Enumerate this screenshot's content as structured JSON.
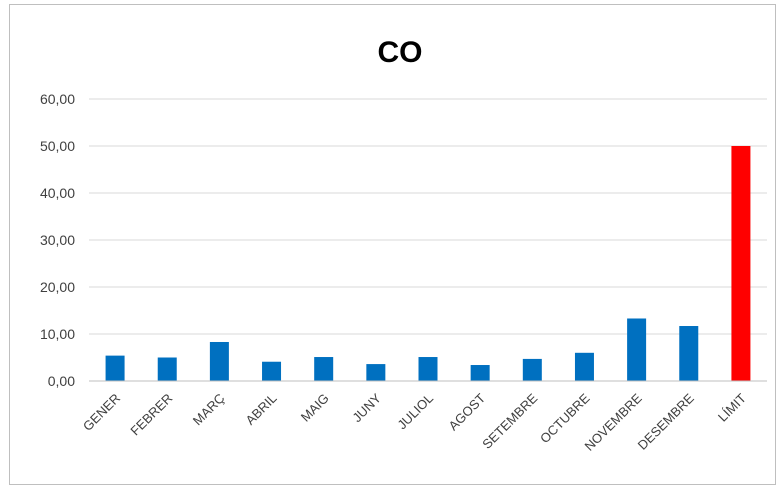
{
  "chart_data": {
    "type": "bar",
    "title": "CO",
    "xlabel": "",
    "ylabel": "",
    "ylim": [
      0,
      60
    ],
    "yticks": [
      "0,00",
      "10,00",
      "20,00",
      "30,00",
      "40,00",
      "50,00",
      "60,00"
    ],
    "grid": true,
    "legend": "none",
    "categories": [
      "GENER",
      "FEBRER",
      "MARÇ",
      "ABRIL",
      "MAIG",
      "JUNY",
      "JULIOL",
      "AGOST",
      "SETEMBRE",
      "OCTUBRE",
      "NOVEMBRE",
      "DESEMBRE",
      "LÍMIT"
    ],
    "values": [
      5.4,
      5.0,
      8.3,
      4.1,
      5.1,
      3.6,
      5.1,
      3.4,
      4.7,
      6.0,
      13.3,
      11.7,
      50.0
    ],
    "colors": {
      "bar": "#0070c0",
      "limit_bar": "#ff0000",
      "grid": "#d9d9d9"
    }
  }
}
